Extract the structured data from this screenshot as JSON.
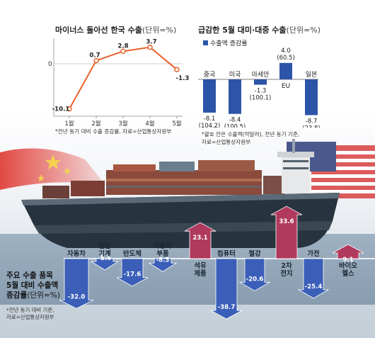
{
  "chart_data": [
    {
      "type": "line",
      "title": "마이너스 돌아선 한국 수출",
      "unit": "(단위=%)",
      "categories": [
        "1월",
        "2월",
        "3월",
        "4월",
        "5월"
      ],
      "series": [
        {
          "values": [
            -10.1,
            0.7,
            2.8,
            3.7,
            -1.3
          ],
          "labels": [
            "-10.1",
            "0.7",
            "2.8",
            "3.7",
            "-1.3"
          ]
        }
      ],
      "zero_label": "0",
      "note": "*전년 동기 대비 수출 증감률, 자료=산업통상자원부",
      "color": "#e8612c"
    },
    {
      "type": "bar",
      "title": "급감한 5월 대미·대중 수출",
      "unit": "(단위=%)",
      "legend": "수출액 증감률",
      "categories": [
        "중국",
        "미국",
        "아세안",
        "EU",
        "일본"
      ],
      "series": [
        {
          "values": [
            -8.1,
            -8.4,
            -1.3,
            4.0,
            -8.7
          ],
          "labels": [
            "-8.1",
            "-8.4",
            "-1.3",
            "4.0",
            "-8.7"
          ],
          "amounts": [
            "(104.2)",
            "(100.5)",
            "(100.1)",
            "(60.5)",
            "(23.8)"
          ]
        }
      ],
      "note": [
        "*괄호 안은 수출액(억달러), 전년 동기 기준,",
        "자료=산업통상자원부"
      ],
      "color": "#2d55a7"
    },
    {
      "type": "bar",
      "title": [
        "주요 수출 품목",
        "5월 대비 수출액",
        "증감률"
      ],
      "unit": "(단위=%)",
      "categories": [
        "자동차",
        "일반 기계",
        "반도체",
        "자동차 부품",
        "석유 제품",
        "컴퓨터",
        "철강",
        "2차 전지",
        "가전",
        "바이오 헬스"
      ],
      "series": [
        {
          "values": [
            -32.0,
            -5.6,
            -17.6,
            -8.3,
            23.1,
            -38.7,
            -20.6,
            33.6,
            -25.4,
            9.1
          ],
          "labels": [
            "-32.0",
            "-5.6",
            "-17.6",
            "-8.3",
            "23.1",
            "-38.7",
            "-20.6",
            "33.6",
            "-25.4",
            "9.1"
          ]
        }
      ],
      "note": [
        "*전년 동기 대비 기준,",
        "자료=산업통상자원부"
      ],
      "colors": {
        "negative": "#3b5fb8",
        "positive": "#b03a5e"
      }
    }
  ]
}
